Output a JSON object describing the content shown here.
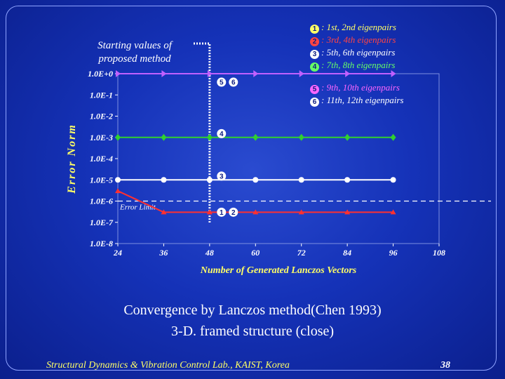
{
  "slide": {
    "starting_label": "Starting values of proposed method",
    "caption_line1": "Convergence by Lanczos method(Chen 1993)",
    "caption_line2": "3-D. framed structure (close)",
    "footer": "Structural Dynamics & Vibration Control Lab., KAIST, Korea",
    "page_number": "38"
  },
  "legend": [
    {
      "num": "1",
      "text": ": 1st, 2nd eigenpairs",
      "color": "#ffff66"
    },
    {
      "num": "2",
      "text": ": 3rd, 4th eigenpairs",
      "color": "#ff4444"
    },
    {
      "num": "3",
      "text": ": 5th, 6th eigenpairs",
      "color": "#ffffff"
    },
    {
      "num": "4",
      "text": ": 7th, 8th eigenpairs",
      "color": "#66ff66"
    },
    {
      "num": "5",
      "text": ": 9th, 10th eigenpairs",
      "color": "#ff66ff"
    },
    {
      "num": "6",
      "text": ": 11th, 12th eigenpairs",
      "color": "#ffffff"
    }
  ],
  "chart_data": {
    "type": "line",
    "xlabel": "Number of Generated Lanczos Vectors",
    "ylabel": "Error Norm",
    "x_ticks": [
      "24",
      "36",
      "48",
      "60",
      "72",
      "84",
      "96",
      "108"
    ],
    "y_ticks": [
      "1.0E+0",
      "1.0E-1",
      "1.0E-2",
      "1.0E-3",
      "1.0E-4",
      "1.0E-5",
      "1.0E-6",
      "1.0E-7",
      "1.0E-8"
    ],
    "xlim": [
      24,
      108
    ],
    "ylim_log10": [
      -8,
      0
    ],
    "y_scale": "log",
    "reference_lines": [
      {
        "label": "Error Limit",
        "value": 1e-06,
        "style": "dashed",
        "color": "#ffffff"
      }
    ],
    "starting_marker_x": 48,
    "series": [
      {
        "key": "1,2",
        "x": [
          24,
          36,
          48,
          60,
          72,
          84,
          96
        ],
        "y": [
          3e-06,
          3e-07,
          3e-07,
          3e-07,
          3e-07,
          3e-07,
          3e-07
        ],
        "color": "#ff3030",
        "marker": "triangle"
      },
      {
        "key": "3",
        "x": [
          24,
          36,
          48,
          60,
          72,
          84,
          96
        ],
        "y": [
          1e-05,
          1e-05,
          1e-05,
          1e-05,
          1e-05,
          1e-05,
          1e-05
        ],
        "color": "#ffffff",
        "marker": "circle"
      },
      {
        "key": "4",
        "x": [
          24,
          36,
          48,
          60,
          72,
          84,
          96
        ],
        "y": [
          0.001,
          0.001,
          0.001,
          0.001,
          0.001,
          0.001,
          0.001
        ],
        "color": "#30d030",
        "marker": "diamond"
      },
      {
        "key": "5,6",
        "x": [
          24,
          36,
          48,
          60,
          72,
          84,
          96
        ],
        "y": [
          1,
          1,
          1,
          1,
          1,
          1,
          1
        ],
        "color": "#c060ff",
        "marker": "arrow"
      }
    ],
    "series_annotations": [
      {
        "nums": [
          "1",
          "2"
        ],
        "x": 50,
        "y": 3e-07
      },
      {
        "nums": [
          "3"
        ],
        "x": 50,
        "y": 1.5e-05
      },
      {
        "nums": [
          "4"
        ],
        "x": 50,
        "y": 0.0015
      },
      {
        "nums": [
          "5",
          "6"
        ],
        "x": 50,
        "y": 0.4
      }
    ]
  }
}
